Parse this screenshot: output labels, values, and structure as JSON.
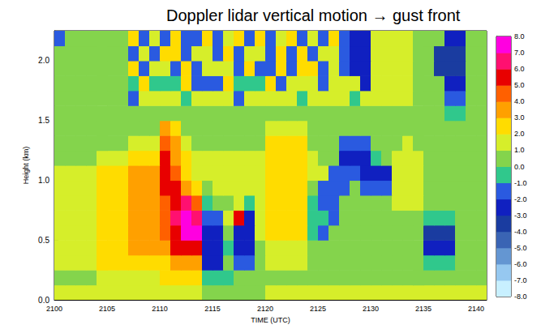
{
  "chart_data": {
    "type": "heatmap",
    "title": "Doppler lidar vertical motion → gust front",
    "x_label": "TIME (UTC)",
    "y_label": "Height (km)",
    "xlim": [
      2100,
      2141
    ],
    "xticks": [
      2100,
      2105,
      2110,
      2115,
      2120,
      2125,
      2130,
      2135,
      2140
    ],
    "ylim": [
      0,
      2.25
    ],
    "yticks": [
      {
        "value": 0,
        "label": "0.0"
      },
      0.5,
      {
        "value": 1,
        "label": "1.0"
      },
      1.5,
      {
        "value": 2,
        "label": "2.0"
      }
    ],
    "grid": false,
    "cells": {
      "x_edges": [
        2100,
        2101,
        2102,
        2103,
        2104,
        2105,
        2106,
        2107,
        2108,
        2109,
        2110,
        2111,
        2112,
        2113,
        2114,
        2115,
        2116,
        2117,
        2118,
        2119,
        2120,
        2121,
        2122,
        2123,
        2124,
        2125,
        2126,
        2127,
        2128,
        2129,
        2130,
        2131,
        2132,
        2133,
        2134,
        2135,
        2136,
        2137,
        2138,
        2139,
        2140,
        2141
      ],
      "y_edges": [
        0,
        0.125,
        0.25,
        0.375,
        0.5,
        0.625,
        0.75,
        0.875,
        1,
        1.125,
        1.25,
        1.375,
        1.5,
        1.625,
        1.75,
        1.875,
        2,
        2.125,
        2.25
      ],
      "values": [
        [
          1,
          1,
          1,
          1,
          1,
          1,
          1,
          1,
          1,
          1,
          1,
          1,
          1,
          1,
          0,
          0,
          0,
          0,
          0,
          0,
          1,
          1,
          1,
          1,
          1,
          1,
          1,
          1,
          1,
          1,
          1,
          1,
          1,
          1,
          1,
          1,
          1,
          1,
          1,
          1,
          1
        ],
        [
          0.5,
          0.5,
          0.5,
          0.5,
          1.5,
          1.5,
          1.5,
          1.5,
          1.5,
          1.5,
          2.5,
          2.5,
          2.5,
          2.5,
          -1,
          -1,
          -1,
          0,
          0,
          0,
          0.5,
          0.5,
          0.5,
          0.5,
          0.5,
          0.5,
          0.5,
          0.5,
          0.5,
          0.5,
          0.5,
          0.5,
          0.5,
          0.5,
          0.5,
          0,
          0,
          0.5,
          0.5,
          0.5,
          0.5
        ],
        [
          1,
          1,
          1,
          1,
          2,
          2,
          2,
          2,
          2,
          2.5,
          2.5,
          3.5,
          3.5,
          3.5,
          -2.5,
          -2.5,
          0,
          -2,
          -2,
          0,
          1,
          1,
          1,
          1,
          0.5,
          0.5,
          0.5,
          0.5,
          0.5,
          0.5,
          0.5,
          0.5,
          0.5,
          0.5,
          0.5,
          -1,
          -1,
          -1,
          0.5,
          0.5,
          0.5
        ],
        [
          1.5,
          1.5,
          1.5,
          1.5,
          2,
          2,
          2,
          3,
          3,
          3,
          3.5,
          5,
          5,
          5,
          -3,
          -3,
          -1,
          -3,
          -3,
          0.5,
          1.5,
          1.5,
          1.5,
          1.5,
          0.5,
          0.5,
          0.5,
          0.5,
          0.5,
          0.5,
          0.5,
          0.5,
          0.5,
          0.5,
          0.5,
          -3,
          -3,
          -3,
          0.5,
          0.5,
          0.5
        ],
        [
          1.5,
          1.5,
          1.5,
          1.5,
          2,
          2,
          2,
          3,
          3,
          3,
          4,
          5.5,
          7,
          7,
          -2.5,
          -2.5,
          0,
          -3,
          -3,
          1,
          2,
          2,
          2,
          2,
          -1,
          -2,
          0.5,
          0.5,
          0.5,
          0.5,
          0.5,
          0.5,
          0.5,
          0.5,
          0.5,
          -3.5,
          -3.5,
          -3.5,
          0.5,
          0.5,
          0.5
        ],
        [
          1.5,
          1.5,
          1.5,
          1.5,
          2,
          2,
          2,
          3.5,
          3.5,
          3.5,
          4.5,
          6,
          7.5,
          6,
          -2,
          -2,
          1,
          5,
          -2.5,
          1,
          2,
          2,
          2,
          2,
          -1,
          -1,
          -2,
          0.5,
          0.5,
          0.5,
          0.5,
          0.5,
          0.5,
          0.5,
          0.5,
          -1,
          -1,
          -1,
          0.5,
          0.5,
          0.5
        ],
        [
          1.5,
          1.5,
          1.5,
          1.5,
          2.5,
          2.5,
          2.5,
          3.5,
          3.5,
          3.5,
          4.5,
          5.5,
          6,
          4,
          -1,
          0,
          0.5,
          1,
          -1,
          1.5,
          2,
          2,
          2,
          2,
          -1,
          -2,
          -2,
          0,
          0.5,
          0.5,
          0.5,
          0.5,
          1.5,
          1.5,
          1.5,
          0.5,
          0.5,
          0.5,
          0.5,
          0.5,
          0.5
        ],
        [
          1.5,
          1.5,
          1.5,
          1.5,
          2.5,
          2.5,
          2.5,
          3.5,
          3.5,
          3.5,
          5,
          5.5,
          3.5,
          2,
          0.5,
          1,
          1,
          1,
          1,
          1,
          2.5,
          2.5,
          2.5,
          2.5,
          0.5,
          -2,
          -2,
          -2,
          0,
          -1.5,
          -1.5,
          -1.5,
          1.5,
          1.5,
          1.5,
          0.5,
          0.5,
          0.5,
          0.5,
          0.5,
          0.5
        ],
        [
          1,
          1,
          1,
          1,
          2,
          2,
          2,
          3,
          3,
          3,
          5,
          4,
          2.5,
          1.5,
          1,
          1,
          1,
          1,
          1,
          1,
          2.5,
          2.5,
          2.5,
          2.5,
          1,
          1,
          -2,
          -2,
          -2,
          -2.5,
          -2.5,
          -2.5,
          1.5,
          1.5,
          1.5,
          0.5,
          0.5,
          0.5,
          0.5,
          0.5,
          0.5
        ],
        [
          0.5,
          0.5,
          0.5,
          0.5,
          1.5,
          1.5,
          1.5,
          2.5,
          2.5,
          2.5,
          5.5,
          3.5,
          2,
          1,
          1,
          1,
          1,
          1,
          1,
          1,
          2.5,
          2.5,
          2.5,
          2.5,
          1,
          0.5,
          0.5,
          -2.5,
          -2.5,
          -2.5,
          -1,
          0.5,
          1.5,
          1.5,
          1.5,
          0.5,
          0.5,
          0.5,
          0.5,
          0.5,
          0.5
        ],
        [
          0.5,
          0.5,
          0.5,
          0.5,
          0.5,
          0.5,
          0.5,
          1.5,
          1.5,
          1.5,
          4,
          3,
          1.5,
          0.5,
          0.5,
          0.5,
          0.5,
          0.5,
          0.5,
          0.5,
          2,
          2,
          2,
          2,
          0.5,
          0.5,
          0.5,
          -2,
          -2,
          -2,
          0.5,
          0.5,
          0.5,
          1.5,
          0.5,
          0.5,
          0.5,
          0.5,
          0.5,
          0.5,
          0.5
        ],
        [
          0.5,
          0.5,
          0.5,
          0.5,
          0.5,
          0.5,
          0.5,
          0.5,
          0.5,
          0.5,
          3,
          2,
          0.5,
          0.5,
          0.5,
          0.5,
          0.5,
          0.5,
          0.5,
          0.5,
          1,
          1,
          1,
          1,
          0.5,
          0.5,
          0.5,
          0.5,
          0.5,
          0.5,
          0.5,
          0.5,
          0.5,
          0.5,
          0.5,
          0.5,
          0.5,
          0.5,
          0.5,
          0.5,
          0.5
        ],
        [
          0.5,
          0.5,
          0.5,
          0.5,
          0.5,
          0.5,
          0.5,
          0.5,
          0.5,
          0.5,
          0.5,
          0.5,
          0.5,
          0.5,
          0.5,
          0.5,
          0.5,
          0.5,
          0.5,
          0.5,
          0.5,
          0.5,
          0.5,
          0.5,
          0.5,
          0.5,
          0.5,
          0.5,
          0.5,
          0.5,
          0.5,
          0.5,
          0.5,
          0.5,
          0.5,
          0.5,
          0.5,
          -1,
          -1,
          0.5,
          0.5
        ],
        [
          0.5,
          0.5,
          0.5,
          0.5,
          0.5,
          0.5,
          0.5,
          -2,
          1,
          1,
          1,
          1,
          -1,
          1.5,
          1.5,
          1.5,
          1.5,
          -1.5,
          1,
          1,
          1,
          1,
          1,
          -1,
          1.5,
          1.5,
          1.5,
          1.5,
          -1,
          1,
          1,
          1,
          1,
          1,
          0.5,
          0.5,
          0.5,
          -2,
          -2,
          0.5,
          0.5
        ],
        [
          0.5,
          0.5,
          0.5,
          0.5,
          0.5,
          0.5,
          0.5,
          -1,
          2,
          -1,
          -1,
          -1,
          2,
          -1.5,
          -1.5,
          -1.5,
          2,
          -1,
          -1,
          -1,
          2,
          -1.5,
          1.5,
          1.5,
          1.5,
          -2,
          1.5,
          1.5,
          1.5,
          -3,
          1.5,
          1.5,
          1.5,
          1.5,
          0.5,
          0.5,
          0.5,
          -3,
          -3,
          0.5,
          0.5
        ],
        [
          0.5,
          0.5,
          0.5,
          0.5,
          0.5,
          0.5,
          0.5,
          2,
          -2,
          1.5,
          1.5,
          -1.5,
          2.5,
          -2,
          1.5,
          1.5,
          1.5,
          -2,
          2,
          -1.5,
          -1.5,
          2,
          -1.5,
          2,
          2,
          -2,
          1.5,
          -1.5,
          -3,
          -3,
          1,
          1,
          1,
          1,
          0.5,
          0.5,
          -3.5,
          -3.5,
          -3.5,
          0.5,
          0.5
        ],
        [
          0.5,
          0.5,
          0.5,
          0.5,
          0.5,
          0.5,
          0.5,
          -1.5,
          1.5,
          -2,
          2,
          2,
          -2,
          1.5,
          1.5,
          -1.5,
          2.5,
          -2,
          1.5,
          1.5,
          -2,
          2,
          -1.5,
          2,
          -2,
          1.5,
          1.5,
          -2,
          -3,
          -3,
          1,
          1,
          1,
          1,
          0.5,
          0.5,
          -3.5,
          -3.5,
          -3.5,
          0.5,
          0.5
        ],
        [
          -2,
          0.5,
          0.5,
          0.5,
          0.5,
          0.5,
          0.5,
          2,
          -2,
          1.5,
          -1.5,
          2,
          -1.5,
          -1.5,
          2,
          -2,
          1.5,
          2,
          -1.5,
          2,
          -2,
          1.5,
          2,
          -2,
          1.5,
          -1.5,
          2,
          -2,
          -3,
          -3,
          1,
          1,
          1,
          1,
          0.5,
          0.5,
          0.5,
          -3,
          -3,
          0.5,
          0.5
        ]
      ]
    },
    "colorbar": {
      "range": [
        -8,
        8
      ],
      "bounds": [
        -8,
        -7,
        -6,
        -5,
        -4,
        -3,
        -2,
        -1,
        0,
        1,
        2,
        3,
        4,
        5,
        6,
        7,
        8
      ],
      "colors": [
        "#c8f0ff",
        "#96c8f0",
        "#6496d2",
        "#3a64b4",
        "#1a3ca0",
        "#1020c0",
        "#2a5ae0",
        "#30c88c",
        "#84d44c",
        "#d6ee2a",
        "#ffdc00",
        "#ffa000",
        "#ff6000",
        "#e80000",
        "#ff1070",
        "#ff00e0"
      ],
      "ticks": [
        {
          "value": 8,
          "label": "8.0"
        },
        {
          "value": 7,
          "label": "7.0"
        },
        {
          "value": 6,
          "label": "6.0"
        },
        {
          "value": 5,
          "label": "5.0"
        },
        {
          "value": 4,
          "label": "4.0"
        },
        {
          "value": 3,
          "label": "3.0"
        },
        {
          "value": 2,
          "label": "2.0"
        },
        {
          "value": 1,
          "label": "1.0"
        },
        {
          "value": 0,
          "label": "0.0"
        },
        {
          "value": -1,
          "label": "-1.0"
        },
        {
          "value": -2,
          "label": "-2.0"
        },
        {
          "value": -3,
          "label": "-3.0"
        },
        {
          "value": -4,
          "label": "-4.0"
        },
        {
          "value": -5,
          "label": "-5.0"
        },
        {
          "value": -6,
          "label": "-6.0"
        },
        {
          "value": -7,
          "label": "-7.0"
        },
        {
          "value": -8,
          "label": "-8.0"
        }
      ]
    }
  }
}
